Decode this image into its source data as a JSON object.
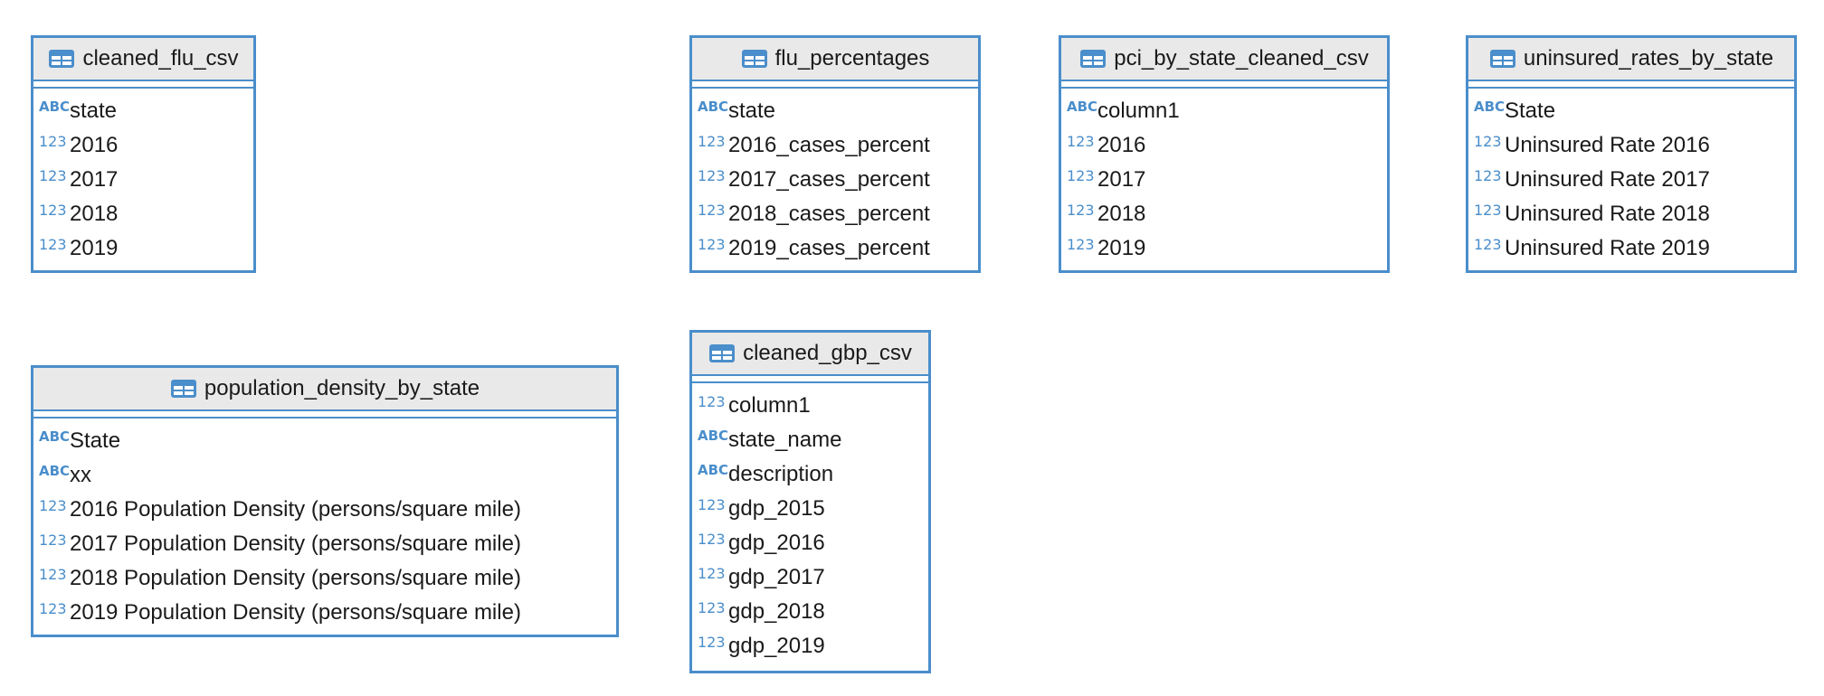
{
  "tables": {
    "cleaned_flu_csv": {
      "title": "cleaned_flu_csv",
      "columns": [
        {
          "type": "ABC",
          "name": "state"
        },
        {
          "type": "123",
          "name": "2016"
        },
        {
          "type": "123",
          "name": "2017"
        },
        {
          "type": "123",
          "name": "2018"
        },
        {
          "type": "123",
          "name": "2019"
        }
      ]
    },
    "flu_percentages": {
      "title": "flu_percentages",
      "columns": [
        {
          "type": "ABC",
          "name": "state"
        },
        {
          "type": "123",
          "name": "2016_cases_percent"
        },
        {
          "type": "123",
          "name": "2017_cases_percent"
        },
        {
          "type": "123",
          "name": "2018_cases_percent"
        },
        {
          "type": "123",
          "name": "2019_cases_percent"
        }
      ]
    },
    "pci_by_state_cleaned_csv": {
      "title": "pci_by_state_cleaned_csv",
      "columns": [
        {
          "type": "ABC",
          "name": "column1"
        },
        {
          "type": "123",
          "name": "2016"
        },
        {
          "type": "123",
          "name": "2017"
        },
        {
          "type": "123",
          "name": "2018"
        },
        {
          "type": "123",
          "name": "2019"
        }
      ]
    },
    "uninsured_rates_by_state": {
      "title": "uninsured_rates_by_state",
      "columns": [
        {
          "type": "ABC",
          "name": "State"
        },
        {
          "type": "123",
          "name": "Uninsured Rate 2016"
        },
        {
          "type": "123",
          "name": "Uninsured Rate 2017"
        },
        {
          "type": "123",
          "name": "Uninsured Rate 2018"
        },
        {
          "type": "123",
          "name": "Uninsured Rate 2019"
        }
      ]
    },
    "population_density_by_state": {
      "title": "population_density_by_state",
      "columns": [
        {
          "type": "ABC",
          "name": "State"
        },
        {
          "type": "ABC",
          "name": "xx"
        },
        {
          "type": "123",
          "name": "2016 Population Density (persons/square mile)"
        },
        {
          "type": "123",
          "name": "2017 Population Density (persons/square mile)"
        },
        {
          "type": "123",
          "name": "2018 Population Density (persons/square mile)"
        },
        {
          "type": "123",
          "name": "2019 Population Density (persons/square mile)"
        }
      ]
    },
    "cleaned_gbp_csv": {
      "title": "cleaned_gbp_csv",
      "columns": [
        {
          "type": "123",
          "name": "column1"
        },
        {
          "type": "ABC",
          "name": "state_name"
        },
        {
          "type": "ABC",
          "name": "description"
        },
        {
          "type": "123",
          "name": "gdp_2015"
        },
        {
          "type": "123",
          "name": "gdp_2016"
        },
        {
          "type": "123",
          "name": "gdp_2017"
        },
        {
          "type": "123",
          "name": "gdp_2018"
        },
        {
          "type": "123",
          "name": "gdp_2019"
        }
      ]
    }
  },
  "colors": {
    "accent": "#4a8ecb",
    "header_bg": "#e9e9e9",
    "text": "#1a1a1a"
  },
  "icons": {
    "table_icon": "table-icon",
    "text_type": "abc-type-icon",
    "numeric_type": "numeric-type-icon"
  }
}
